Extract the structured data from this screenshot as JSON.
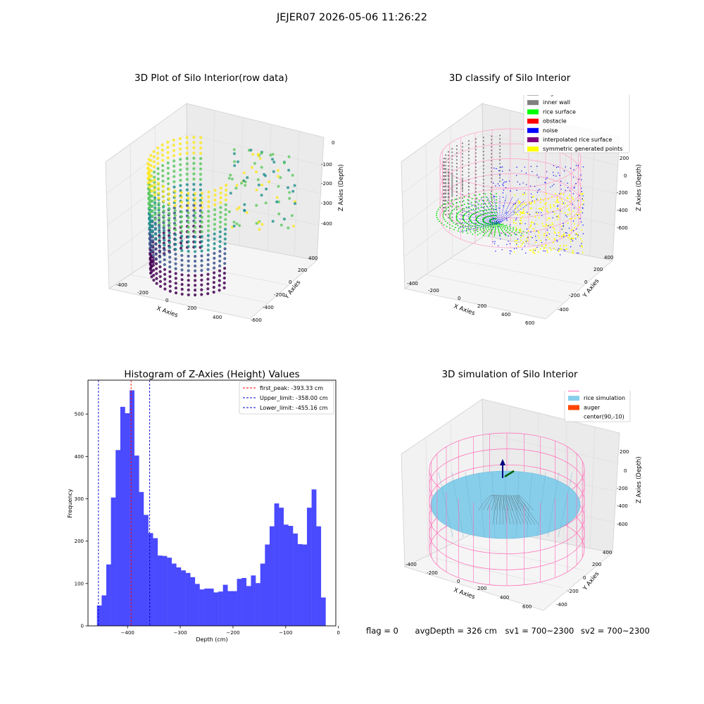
{
  "suptitle": "JEJER07 2026-05-06 11:26:22",
  "panels": {
    "raw": {
      "title": "3D Plot of Silo Interior(row data)",
      "xlabel": "X Axies",
      "ylabel": "Y Axies",
      "zlabel": "Z Axies (Depth)",
      "xticks": [
        "-400",
        "-200",
        "0",
        "200",
        "400"
      ],
      "yticks": [
        "-600",
        "-400",
        "-200",
        "0",
        "200",
        "400"
      ],
      "zticks": [
        "0",
        "-100",
        "-200",
        "-300",
        "-400"
      ]
    },
    "classify": {
      "title": "3D classify of Silo Interior",
      "xlabel": "X Axies",
      "ylabel": "Y Axies",
      "zlabel": "Z Axies (Depth)",
      "xticks": [
        "-400",
        "-200",
        "0",
        "200",
        "400",
        "600"
      ],
      "yticks": [
        "-400",
        "-200",
        "0",
        "200",
        "400"
      ],
      "zticks": [
        "200",
        "0",
        "-200",
        "-400",
        "-600"
      ],
      "legend": [
        {
          "label": "original data",
          "color": "#b0b0b0"
        },
        {
          "label": "inner wall",
          "color": "#808080"
        },
        {
          "label": "rice surface",
          "color": "#00ff00"
        },
        {
          "label": "obstacle",
          "color": "#ff0000"
        },
        {
          "label": "noise",
          "color": "#0000ff"
        },
        {
          "label": "interpolated rice surface",
          "color": "#800080"
        },
        {
          "label": "symmetric generated points",
          "color": "#ffff00"
        }
      ]
    },
    "simulation": {
      "title": "3D simulation of Silo Interior",
      "xlabel": "X Axies",
      "ylabel": "Y Axies",
      "zlabel": "Z Axies (Depth)",
      "xticks": [
        "-400",
        "-200",
        "0",
        "200",
        "400",
        "600"
      ],
      "yticks": [
        "-400",
        "-200",
        "0",
        "200",
        "400"
      ],
      "zticks": [
        "200",
        "0",
        "-200",
        "-400",
        "-600"
      ],
      "legend": [
        {
          "label": "silo",
          "color": "#ff69b4"
        },
        {
          "label": "rice simulation",
          "color": "#87ceeb"
        },
        {
          "label": "auger",
          "color": "#ff4500"
        },
        {
          "label": "center(90,-10)",
          "color": ""
        }
      ]
    }
  },
  "chart_data": {
    "type": "bar",
    "title": "Histogram of Z-Axies (Height) Values",
    "xlabel": "Depth (cm)",
    "ylabel": "Frequency",
    "xlim": [
      -475,
      -5
    ],
    "ylim": [
      0,
      580
    ],
    "xticks": [
      -400,
      -300,
      -200,
      -100,
      0
    ],
    "yticks": [
      0,
      100,
      200,
      300,
      400,
      500
    ],
    "bar_color": "#4a4aff",
    "bin_start": -458,
    "bin_width": 8.85,
    "values": [
      48,
      72,
      145,
      303,
      415,
      517,
      502,
      556,
      402,
      316,
      262,
      219,
      207,
      166,
      165,
      161,
      147,
      138,
      131,
      125,
      115,
      99,
      86,
      88,
      88,
      79,
      81,
      97,
      82,
      82,
      111,
      113,
      94,
      119,
      101,
      147,
      192,
      235,
      289,
      279,
      239,
      236,
      218,
      193,
      192,
      279,
      322,
      235,
      67
    ],
    "lines": [
      {
        "label": "first_peak: -393.33 cm",
        "x": -393.33,
        "color": "#ff0000"
      },
      {
        "label": "Upper_limit: -358.00 cm",
        "x": -358.0,
        "color": "#0000cc"
      },
      {
        "label": "Lower_limit: -455.16 cm",
        "x": -455.16,
        "color": "#0000cc"
      }
    ],
    "legend_position": "top-right"
  },
  "footer": {
    "flag": "flag = 0",
    "avg_depth": "avgDepth = 326 cm",
    "sv1": "sv1 = 700~2300",
    "sv2": "sv2 = 700~2300"
  }
}
